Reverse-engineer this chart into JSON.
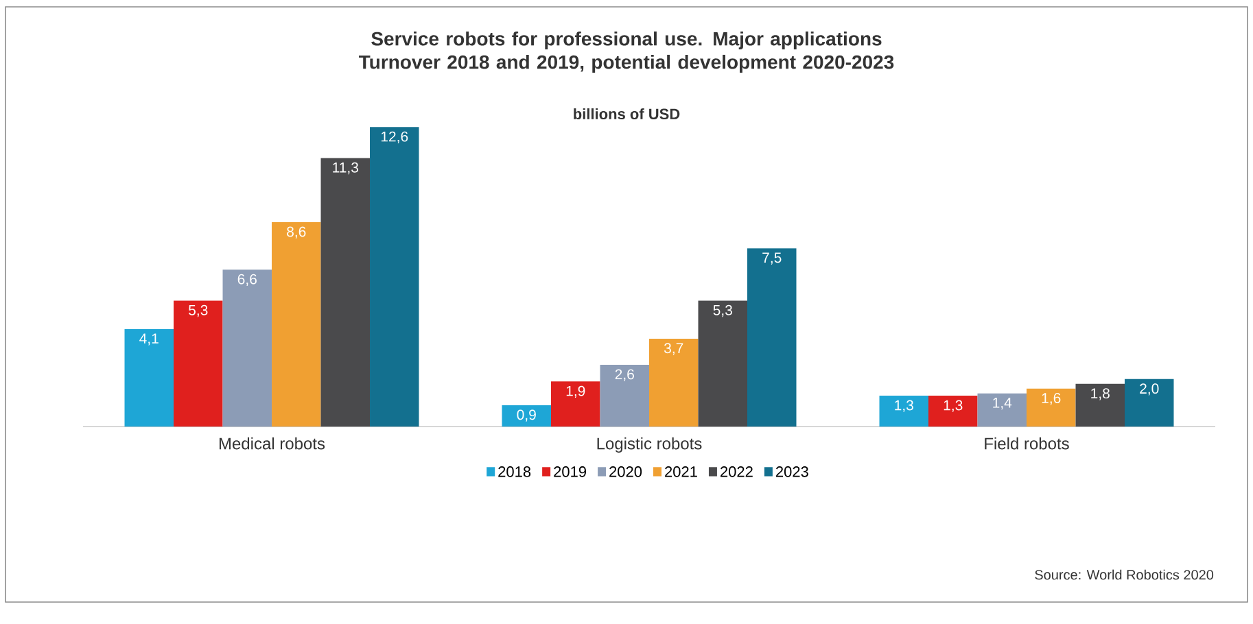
{
  "chart_data": {
    "type": "bar",
    "title": "Service robots for professional use. Major applications\nTurnover 2018 and 2019, potential development 2020-2023",
    "subtitle": "billions of USD",
    "categories": [
      "Medical robots",
      "Logistic robots",
      "Field robots"
    ],
    "series": [
      {
        "name": "2018",
        "color": "#1ea6d6",
        "values": [
          4.1,
          0.9,
          1.3
        ],
        "value_labels": [
          "4,1",
          "0,9",
          "1,3"
        ]
      },
      {
        "name": "2019",
        "color": "#e0201e",
        "values": [
          5.3,
          1.9,
          1.3
        ],
        "value_labels": [
          "5,3",
          "1,9",
          "1,3"
        ]
      },
      {
        "name": "2020",
        "color": "#8c9cb6",
        "values": [
          6.6,
          2.6,
          1.4
        ],
        "value_labels": [
          "6,6",
          "2,6",
          "1,4"
        ]
      },
      {
        "name": "2021",
        "color": "#f0a032",
        "values": [
          8.6,
          3.7,
          1.6
        ],
        "value_labels": [
          "8,6",
          "3,7",
          "1,6"
        ]
      },
      {
        "name": "2022",
        "color": "#4a4a4c",
        "values": [
          11.3,
          5.3,
          1.8
        ],
        "value_labels": [
          "11,3",
          "5,3",
          "1,8"
        ]
      },
      {
        "name": "2023",
        "color": "#13708f",
        "values": [
          12.6,
          7.5,
          2.0
        ],
        "value_labels": [
          "12,6",
          "7,5",
          "2,0"
        ]
      }
    ],
    "legend": "bottom",
    "annotations": [
      "Source: World Robotics 2020"
    ]
  }
}
